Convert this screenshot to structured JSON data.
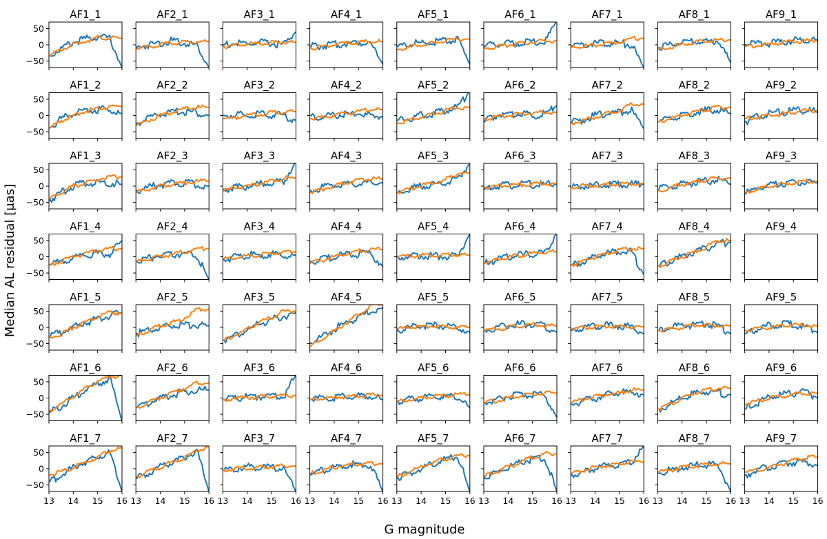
{
  "figure": {
    "xlabel": "G magnitude",
    "ylabel": "Median AL residual [μas]",
    "rows": 7,
    "cols": 9
  },
  "chart_data": {
    "type": "line",
    "xlim": [
      13,
      16
    ],
    "ylim": [
      -70,
      70
    ],
    "x_ticks": [
      "13",
      "14",
      "15",
      "16"
    ],
    "y_ticks": [
      "50",
      "0",
      "−50"
    ],
    "colors": {
      "series_a": "#1f77b4",
      "series_b": "#ff7f0e"
    },
    "grid": false,
    "legend": "none",
    "panels": [
      {
        "title": "AF1_1",
        "a": [
          -35,
          -12,
          8,
          18,
          25,
          20,
          -70
        ],
        "b": [
          -35,
          -15,
          0,
          12,
          22,
          20,
          20
        ]
      },
      {
        "title": "AF2_1",
        "a": [
          -8,
          0,
          6,
          12,
          5,
          0,
          -70
        ],
        "b": [
          -12,
          -6,
          0,
          5,
          8,
          10,
          10
        ]
      },
      {
        "title": "AF3_1",
        "a": [
          0,
          4,
          2,
          6,
          4,
          0,
          40
        ],
        "b": [
          -5,
          -2,
          2,
          4,
          6,
          8,
          8
        ]
      },
      {
        "title": "AF4_1",
        "a": [
          -5,
          -3,
          0,
          4,
          8,
          6,
          -60
        ],
        "b": [
          -10,
          -6,
          0,
          4,
          8,
          10,
          10
        ]
      },
      {
        "title": "AF5_1",
        "a": [
          -5,
          2,
          5,
          8,
          12,
          15,
          -60
        ],
        "b": [
          -15,
          -8,
          0,
          5,
          12,
          18,
          18
        ]
      },
      {
        "title": "AF6_1",
        "a": [
          -5,
          0,
          5,
          5,
          8,
          5,
          75
        ],
        "b": [
          -10,
          -6,
          0,
          4,
          8,
          12,
          12
        ]
      },
      {
        "title": "AF7_1",
        "a": [
          -3,
          2,
          5,
          6,
          5,
          0,
          -70
        ],
        "b": [
          -8,
          -4,
          0,
          4,
          8,
          20,
          20
        ]
      },
      {
        "title": "AF8_1",
        "a": [
          -10,
          2,
          6,
          10,
          10,
          12,
          -55
        ],
        "b": [
          -15,
          -8,
          0,
          8,
          12,
          15,
          15
        ]
      },
      {
        "title": "AF9_1",
        "a": [
          0,
          2,
          5,
          10,
          12,
          15,
          15
        ],
        "b": [
          -5,
          -2,
          2,
          6,
          10,
          12,
          12
        ]
      },
      {
        "title": "AF1_2",
        "a": [
          -40,
          -10,
          5,
          12,
          18,
          18,
          5
        ],
        "b": [
          -40,
          -15,
          0,
          12,
          22,
          28,
          28
        ]
      },
      {
        "title": "AF2_2",
        "a": [
          -25,
          -8,
          5,
          10,
          12,
          8,
          0
        ],
        "b": [
          -30,
          -15,
          0,
          10,
          20,
          25,
          25
        ]
      },
      {
        "title": "AF3_2",
        "a": [
          0,
          2,
          0,
          4,
          2,
          0,
          -15
        ],
        "b": [
          -10,
          -6,
          0,
          4,
          8,
          12,
          12
        ]
      },
      {
        "title": "AF4_2",
        "a": [
          0,
          -5,
          0,
          5,
          5,
          0,
          -5
        ],
        "b": [
          -10,
          -6,
          0,
          6,
          12,
          18,
          18
        ]
      },
      {
        "title": "AF5_2",
        "a": [
          -15,
          -8,
          0,
          5,
          15,
          25,
          75
        ],
        "b": [
          -25,
          -15,
          -5,
          5,
          15,
          25,
          25
        ]
      },
      {
        "title": "AF6_2",
        "a": [
          -20,
          0,
          5,
          5,
          0,
          5,
          30
        ],
        "b": [
          -10,
          -5,
          0,
          5,
          8,
          10,
          10
        ]
      },
      {
        "title": "AF7_2",
        "a": [
          -20,
          -15,
          0,
          5,
          10,
          15,
          -40
        ],
        "b": [
          -25,
          -15,
          -5,
          5,
          15,
          35,
          35
        ]
      },
      {
        "title": "AF8_2",
        "a": [
          -20,
          -10,
          0,
          8,
          15,
          18,
          5
        ],
        "b": [
          -20,
          -10,
          0,
          10,
          18,
          25,
          25
        ]
      },
      {
        "title": "AF9_2",
        "a": [
          -20,
          -5,
          5,
          10,
          15,
          15,
          10
        ],
        "b": [
          -10,
          -5,
          0,
          5,
          10,
          15,
          15
        ]
      },
      {
        "title": "AF1_3",
        "a": [
          -45,
          -20,
          0,
          10,
          12,
          10,
          5
        ],
        "b": [
          -40,
          -20,
          0,
          10,
          20,
          28,
          28
        ]
      },
      {
        "title": "AF2_3",
        "a": [
          -15,
          -5,
          5,
          8,
          10,
          5,
          0
        ],
        "b": [
          -20,
          -10,
          0,
          5,
          10,
          15,
          15
        ]
      },
      {
        "title": "AF3_3",
        "a": [
          -10,
          -5,
          0,
          5,
          10,
          15,
          75
        ],
        "b": [
          -15,
          -5,
          0,
          8,
          15,
          25,
          25
        ]
      },
      {
        "title": "AF4_3",
        "a": [
          -15,
          -5,
          0,
          5,
          8,
          10,
          10
        ],
        "b": [
          -20,
          -10,
          0,
          10,
          18,
          22,
          22
        ]
      },
      {
        "title": "AF5_3",
        "a": [
          -20,
          -10,
          0,
          5,
          12,
          20,
          70
        ],
        "b": [
          -20,
          -10,
          0,
          10,
          20,
          40,
          40
        ]
      },
      {
        "title": "AF6_3",
        "a": [
          -10,
          0,
          2,
          5,
          5,
          5,
          5
        ],
        "b": [
          -5,
          0,
          2,
          4,
          6,
          8,
          8
        ]
      },
      {
        "title": "AF7_3",
        "a": [
          -5,
          0,
          2,
          4,
          6,
          5,
          5
        ],
        "b": [
          -5,
          0,
          2,
          4,
          6,
          8,
          8
        ]
      },
      {
        "title": "AF8_3",
        "a": [
          -10,
          0,
          5,
          10,
          15,
          20,
          5
        ],
        "b": [
          -15,
          -5,
          5,
          12,
          20,
          25,
          25
        ]
      },
      {
        "title": "AF9_3",
        "a": [
          -25,
          -5,
          5,
          8,
          10,
          12,
          10
        ],
        "b": [
          -20,
          -10,
          0,
          5,
          10,
          15,
          15
        ]
      },
      {
        "title": "AF1_4",
        "a": [
          -25,
          -15,
          -5,
          5,
          10,
          10,
          50
        ],
        "b": [
          -25,
          -15,
          0,
          10,
          20,
          25,
          25
        ]
      },
      {
        "title": "AF2_4",
        "a": [
          -15,
          -5,
          5,
          8,
          10,
          5,
          -70
        ],
        "b": [
          -15,
          -8,
          0,
          8,
          15,
          25,
          25
        ]
      },
      {
        "title": "AF3_4",
        "a": [
          -10,
          0,
          5,
          5,
          8,
          5,
          5
        ],
        "b": [
          -5,
          -2,
          2,
          6,
          10,
          15,
          15
        ]
      },
      {
        "title": "AF4_4",
        "a": [
          -15,
          -8,
          0,
          5,
          8,
          10,
          -30
        ],
        "b": [
          -20,
          -10,
          0,
          10,
          18,
          22,
          22
        ]
      },
      {
        "title": "AF5_4",
        "a": [
          0,
          2,
          5,
          2,
          0,
          5,
          70
        ],
        "b": [
          0,
          2,
          4,
          4,
          4,
          5,
          5
        ]
      },
      {
        "title": "AF6_4",
        "a": [
          -20,
          -10,
          0,
          5,
          10,
          10,
          75
        ],
        "b": [
          -20,
          -10,
          0,
          5,
          10,
          15,
          15
        ]
      },
      {
        "title": "AF7_4",
        "a": [
          -25,
          -15,
          0,
          10,
          15,
          15,
          -55
        ],
        "b": [
          -25,
          -15,
          0,
          10,
          20,
          25,
          25
        ]
      },
      {
        "title": "AF8_4",
        "a": [
          -30,
          -15,
          0,
          15,
          25,
          40,
          45
        ],
        "b": [
          -30,
          -15,
          0,
          15,
          30,
          50,
          50
        ]
      },
      {
        "title": "AF9_4",
        "a": [],
        "b": []
      },
      {
        "title": "AF1_5",
        "a": [
          -30,
          -15,
          0,
          15,
          25,
          35,
          45
        ],
        "b": [
          -30,
          -20,
          0,
          15,
          30,
          45,
          45
        ]
      },
      {
        "title": "AF2_5",
        "a": [
          -20,
          -10,
          0,
          8,
          10,
          5,
          5
        ],
        "b": [
          -25,
          -10,
          5,
          15,
          30,
          55,
          55
        ]
      },
      {
        "title": "AF3_5",
        "a": [
          -40,
          -25,
          -5,
          10,
          25,
          35,
          45
        ],
        "b": [
          -40,
          -25,
          -5,
          15,
          30,
          50,
          50
        ]
      },
      {
        "title": "AF4_5",
        "a": [
          -50,
          -30,
          -5,
          15,
          30,
          50,
          60
        ],
        "b": [
          -60,
          -35,
          -10,
          15,
          40,
          65,
          70
        ]
      },
      {
        "title": "AF5_5",
        "a": [
          -10,
          0,
          5,
          5,
          5,
          0,
          -15
        ],
        "b": [
          -5,
          0,
          2,
          4,
          2,
          0,
          0
        ]
      },
      {
        "title": "AF6_5",
        "a": [
          -10,
          0,
          5,
          10,
          10,
          5,
          -15
        ],
        "b": [
          -10,
          -5,
          0,
          5,
          8,
          5,
          5
        ]
      },
      {
        "title": "AF7_5",
        "a": [
          -10,
          0,
          5,
          5,
          5,
          0,
          -20
        ],
        "b": [
          -5,
          -2,
          2,
          4,
          4,
          2,
          2
        ]
      },
      {
        "title": "AF8_5",
        "a": [
          -10,
          0,
          5,
          8,
          10,
          5,
          -20
        ],
        "b": [
          -10,
          -5,
          0,
          5,
          8,
          5,
          5
        ]
      },
      {
        "title": "AF9_5",
        "a": [
          -20,
          -5,
          5,
          10,
          10,
          0,
          -15
        ],
        "b": [
          -10,
          -5,
          0,
          5,
          8,
          5,
          5
        ]
      },
      {
        "title": "AF1_6",
        "a": [
          -45,
          -25,
          0,
          25,
          45,
          60,
          -70
        ],
        "b": [
          -40,
          -20,
          5,
          30,
          50,
          65,
          70
        ]
      },
      {
        "title": "AF2_6",
        "a": [
          -30,
          -15,
          0,
          10,
          20,
          25,
          25
        ],
        "b": [
          -30,
          -15,
          0,
          15,
          30,
          45,
          45
        ]
      },
      {
        "title": "AF3_6",
        "a": [
          -5,
          0,
          5,
          5,
          8,
          5,
          70
        ],
        "b": [
          -5,
          0,
          2,
          4,
          6,
          8,
          8
        ]
      },
      {
        "title": "AF4_6",
        "a": [
          -5,
          0,
          2,
          5,
          5,
          5,
          -5
        ],
        "b": [
          -5,
          -2,
          2,
          4,
          6,
          8,
          8
        ]
      },
      {
        "title": "AF5_6",
        "a": [
          -10,
          -5,
          0,
          5,
          5,
          5,
          -30
        ],
        "b": [
          -10,
          -5,
          0,
          4,
          8,
          10,
          10
        ]
      },
      {
        "title": "AF6_6",
        "a": [
          -15,
          -5,
          5,
          10,
          12,
          10,
          -60
        ],
        "b": [
          -15,
          -8,
          0,
          8,
          12,
          15,
          15
        ]
      },
      {
        "title": "AF7_6",
        "a": [
          -20,
          -10,
          0,
          10,
          15,
          20,
          10
        ],
        "b": [
          -15,
          -5,
          5,
          10,
          15,
          25,
          25
        ]
      },
      {
        "title": "AF8_6",
        "a": [
          -35,
          -20,
          0,
          15,
          20,
          15,
          10
        ],
        "b": [
          -35,
          -20,
          0,
          15,
          25,
          30,
          30
        ]
      },
      {
        "title": "AF9_6",
        "a": [
          -35,
          -15,
          0,
          10,
          15,
          20,
          0
        ],
        "b": [
          -20,
          -10,
          0,
          5,
          10,
          15,
          15
        ]
      },
      {
        "title": "AF1_7",
        "a": [
          -40,
          -20,
          5,
          20,
          35,
          50,
          -70
        ],
        "b": [
          -20,
          -10,
          5,
          20,
          35,
          55,
          65
        ]
      },
      {
        "title": "AF2_7",
        "a": [
          -30,
          -15,
          5,
          20,
          35,
          55,
          -70
        ],
        "b": [
          -25,
          -10,
          5,
          20,
          35,
          55,
          70
        ]
      },
      {
        "title": "AF3_7",
        "a": [
          -5,
          0,
          5,
          5,
          5,
          0,
          -70
        ],
        "b": [
          -5,
          0,
          2,
          4,
          6,
          8,
          8
        ]
      },
      {
        "title": "AF4_7",
        "a": [
          -20,
          -5,
          5,
          10,
          15,
          10,
          -70
        ],
        "b": [
          -15,
          -5,
          5,
          10,
          15,
          15,
          15
        ]
      },
      {
        "title": "AF5_7",
        "a": [
          -30,
          -15,
          0,
          15,
          30,
          40,
          -70
        ],
        "b": [
          -25,
          -10,
          5,
          20,
          30,
          40,
          40
        ]
      },
      {
        "title": "AF6_7",
        "a": [
          -30,
          -15,
          5,
          20,
          30,
          35,
          -70
        ],
        "b": [
          -25,
          -10,
          5,
          20,
          35,
          45,
          45
        ]
      },
      {
        "title": "AF7_7",
        "a": [
          -20,
          -10,
          0,
          10,
          15,
          20,
          70
        ],
        "b": [
          -15,
          -5,
          5,
          10,
          15,
          20,
          20
        ]
      },
      {
        "title": "AF8_7",
        "a": [
          -15,
          -5,
          5,
          10,
          12,
          10,
          -70
        ],
        "b": [
          -10,
          -5,
          5,
          8,
          12,
          15,
          15
        ]
      },
      {
        "title": "AF9_7",
        "a": [
          -20,
          -5,
          5,
          15,
          20,
          20,
          10
        ],
        "b": [
          -10,
          -5,
          5,
          15,
          25,
          35,
          35
        ]
      }
    ]
  }
}
